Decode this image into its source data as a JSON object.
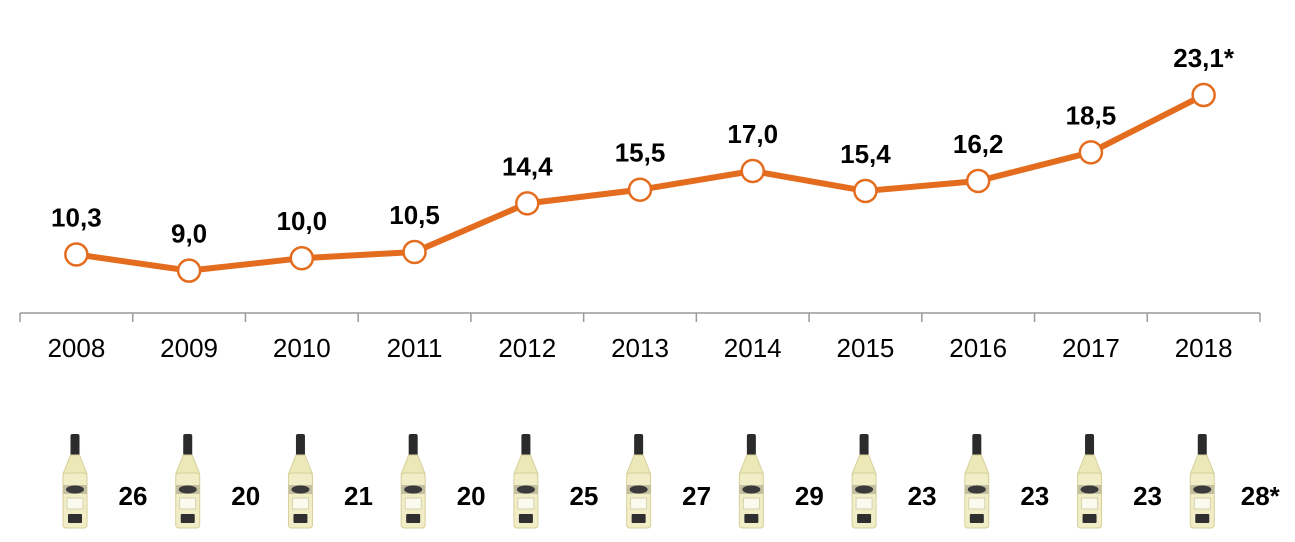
{
  "chart_data": {
    "type": "line",
    "categories": [
      "2008",
      "2009",
      "2010",
      "2011",
      "2012",
      "2013",
      "2014",
      "2015",
      "2016",
      "2017",
      "2018"
    ],
    "values": [
      10.3,
      9.0,
      10.0,
      10.5,
      14.4,
      15.5,
      17.0,
      15.4,
      16.2,
      18.5,
      23.1
    ],
    "data_labels": [
      "10,3",
      "9,0",
      "10,0",
      "10,5",
      "14,4",
      "15,5",
      "17,0",
      "15,4",
      "16,2",
      "18,5",
      "23,1*"
    ],
    "ylim": [
      5.6,
      28
    ],
    "grid": false,
    "legend": "none",
    "line_color": "#E46C1E",
    "marker_fill": "#ffffff",
    "title": "",
    "xlabel": "",
    "ylabel": ""
  },
  "bottle_row": {
    "icon": "vermouth-bottle-icon",
    "values": [
      "26",
      "20",
      "21",
      "20",
      "25",
      "27",
      "29",
      "23",
      "23",
      "23",
      "28*"
    ]
  }
}
